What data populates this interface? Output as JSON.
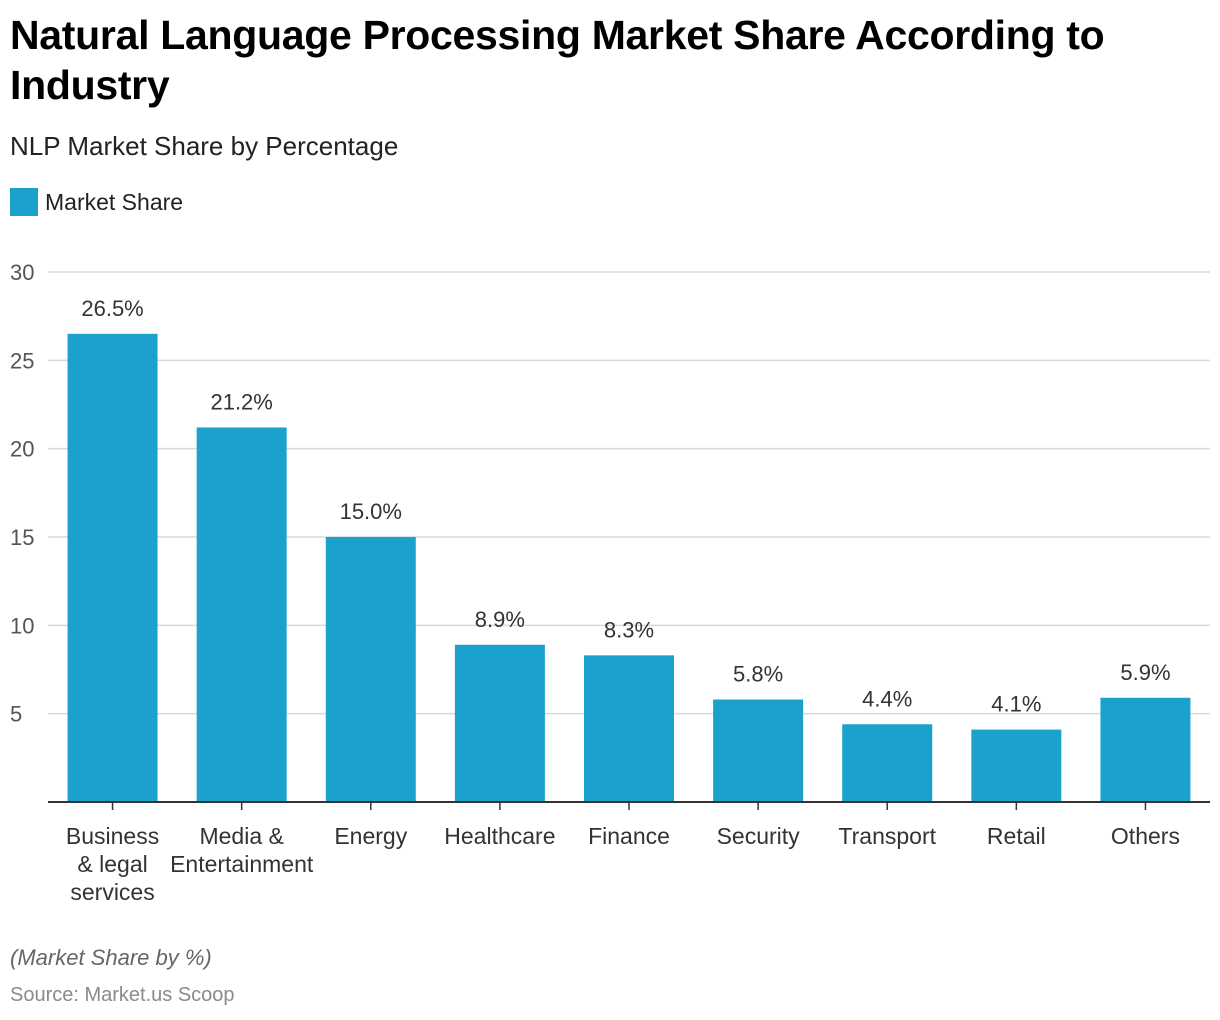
{
  "header": {
    "title": "Natural Language Processing Market Share According to Industry",
    "subtitle": "NLP Market Share by Percentage"
  },
  "legend": {
    "label": "Market Share"
  },
  "footer": {
    "caption": "(Market Share by %)",
    "source": "Source: Market.us Scoop"
  },
  "colors": {
    "bar": "#1aa1cd",
    "grid": "#d9d9d9",
    "axis": "#333333",
    "tick_text": "#555555",
    "label_text": "#333333"
  },
  "chart_data": {
    "type": "bar",
    "categories": [
      [
        "Business",
        "& legal",
        "services"
      ],
      [
        "Media &",
        "Entertainment"
      ],
      [
        "Energy"
      ],
      [
        "Healthcare"
      ],
      [
        "Finance"
      ],
      [
        "Security"
      ],
      [
        "Transport"
      ],
      [
        "Retail"
      ],
      [
        "Others"
      ]
    ],
    "series": [
      {
        "name": "Market Share",
        "values": [
          26.5,
          21.2,
          15.0,
          8.9,
          8.3,
          5.8,
          4.4,
          4.1,
          5.9
        ],
        "labels": [
          "26.5%",
          "21.2%",
          "15.0%",
          "8.9%",
          "8.3%",
          "5.8%",
          "4.4%",
          "4.1%",
          "5.9%"
        ]
      }
    ],
    "y_ticks": [
      5,
      10,
      15,
      20,
      25,
      30
    ],
    "ylim": [
      0,
      30
    ],
    "grid": true,
    "legend_position": "top-left"
  }
}
